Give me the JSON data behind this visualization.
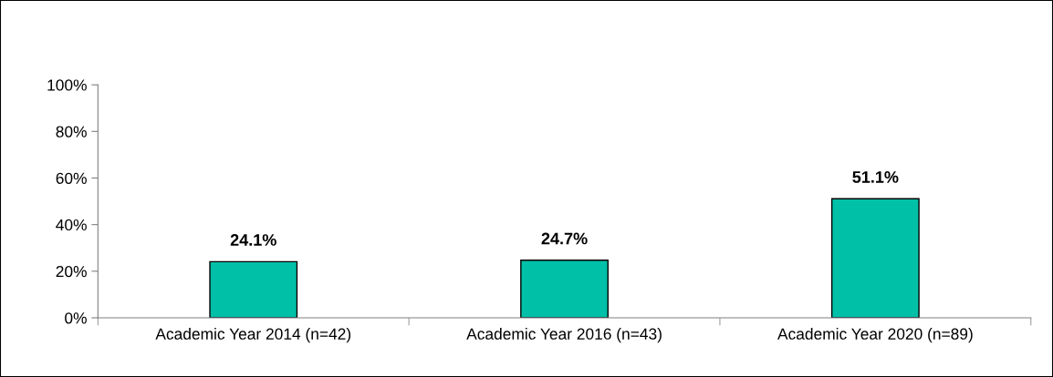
{
  "chart_data": {
    "type": "bar",
    "categories": [
      "Academic Year 2014 (n=42)",
      "Academic Year 2016 (n=43)",
      "Academic Year 2020 (n=89)"
    ],
    "values": [
      24.1,
      24.7,
      51.1
    ],
    "value_labels": [
      "24.1%",
      "24.7%",
      "51.1%"
    ],
    "color": "#00c0a8",
    "ylim": [
      0,
      100
    ],
    "yticks": [
      {
        "value": 0,
        "label": "0%"
      },
      {
        "value": 20,
        "label": "20%"
      },
      {
        "value": 40,
        "label": "40%"
      },
      {
        "value": 60,
        "label": "60%"
      },
      {
        "value": 80,
        "label": "80%"
      },
      {
        "value": 100,
        "label": "100%"
      }
    ],
    "grid": false,
    "legend": false
  }
}
